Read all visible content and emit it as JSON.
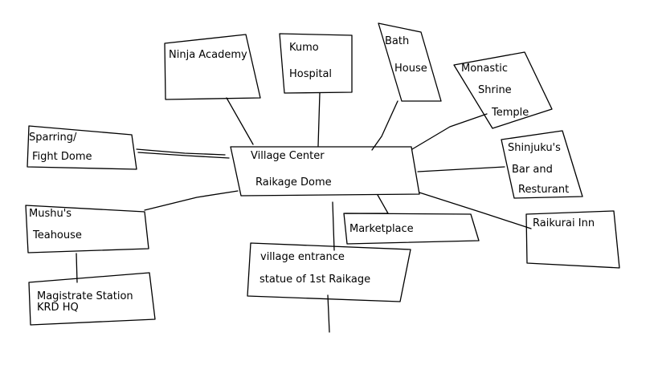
{
  "diagram": {
    "nodes": {
      "center": {
        "lines": [
          "Village Center",
          "Raikage Dome"
        ]
      },
      "academy": {
        "lines": [
          "Ninja Academy"
        ]
      },
      "hospital": {
        "lines": [
          "Kumo",
          "Hospital"
        ]
      },
      "bath": {
        "lines": [
          "Bath",
          "House"
        ]
      },
      "temple": {
        "lines": [
          "Monastic",
          "Shrine",
          "Temple"
        ]
      },
      "bar": {
        "lines": [
          "Shinjuku's",
          "Bar and",
          "Resturant"
        ]
      },
      "inn": {
        "lines": [
          "Raikurai Inn"
        ]
      },
      "marketplace": {
        "lines": [
          "Marketplace"
        ]
      },
      "entrance": {
        "lines": [
          "village entrance",
          "statue of 1st Raikage"
        ]
      },
      "teahouse": {
        "lines": [
          "Mushu's",
          "Teahouse"
        ]
      },
      "magistrate": {
        "lines": [
          "Magistrate Station",
          "KRD HQ"
        ]
      },
      "sparring": {
        "lines": [
          "Sparring/",
          "Fight Dome"
        ]
      }
    },
    "edges": [
      [
        "center",
        "academy"
      ],
      [
        "center",
        "hospital"
      ],
      [
        "center",
        "bath"
      ],
      [
        "center",
        "temple"
      ],
      [
        "center",
        "bar"
      ],
      [
        "center",
        "inn"
      ],
      [
        "center",
        "marketplace"
      ],
      [
        "center",
        "entrance"
      ],
      [
        "center",
        "teahouse"
      ],
      [
        "center",
        "sparring"
      ],
      [
        "teahouse",
        "magistrate"
      ]
    ],
    "colors": {
      "ink": "#000000",
      "background": "#ffffff"
    }
  }
}
